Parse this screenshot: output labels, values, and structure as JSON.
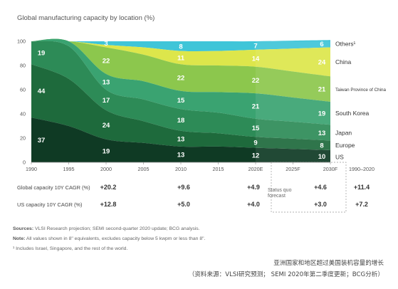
{
  "title": "Global manufacturing capacity by location (%)",
  "chart_data": {
    "type": "area",
    "stacked": true,
    "x": [
      1990,
      1995,
      2000,
      2005,
      2010,
      2015,
      2020,
      2025,
      2030
    ],
    "x_tick_labels": [
      "1990",
      "1995",
      "2000",
      "2005",
      "2010",
      "2015",
      "2020E",
      "2025F",
      "2030F"
    ],
    "ylim": [
      0,
      100
    ],
    "y_ticks": [
      0,
      20,
      40,
      60,
      80,
      100
    ],
    "series": [
      {
        "name": "US",
        "color": "#0f3a24",
        "values": [
          37,
          30,
          19,
          16,
          13,
          13,
          12,
          11,
          10
        ]
      },
      {
        "name": "Europe",
        "color": "#1e6a3c",
        "values": [
          44,
          39,
          24,
          18,
          13,
          11,
          9,
          8.5,
          8
        ]
      },
      {
        "name": "Japan",
        "color": "#2d8b57",
        "values": [
          19,
          27,
          17,
          18,
          18,
          17,
          15,
          14,
          13
        ]
      },
      {
        "name": "South Korea",
        "color": "#3aa371",
        "values": [
          0,
          4,
          13,
          15,
          15,
          17,
          21,
          20,
          19
        ]
      },
      {
        "name": "Taiwan Province of China",
        "color": "#8cc74d",
        "values": [
          0,
          0,
          22,
          22,
          22,
          22,
          22,
          21.5,
          21
        ]
      },
      {
        "name": "China",
        "color": "#dde64b",
        "values": [
          0,
          0,
          2,
          6,
          11,
          12,
          14,
          19,
          24
        ]
      },
      {
        "name": "Others¹",
        "color": "#3fc5d8",
        "values": [
          0,
          0,
          3,
          5,
          8,
          8,
          7,
          6.5,
          6
        ]
      }
    ],
    "data_labels": [
      {
        "series": "US",
        "x": 1990,
        "text": "37"
      },
      {
        "series": "US",
        "x": 2000,
        "text": "19"
      },
      {
        "series": "US",
        "x": 2010,
        "text": "13"
      },
      {
        "series": "US",
        "x": 2020,
        "text": "12"
      },
      {
        "series": "US",
        "x": 2030,
        "text": "10"
      },
      {
        "series": "Europe",
        "x": 1990,
        "text": "44"
      },
      {
        "series": "Europe",
        "x": 2000,
        "text": "24"
      },
      {
        "series": "Europe",
        "x": 2010,
        "text": "13"
      },
      {
        "series": "Europe",
        "x": 2020,
        "text": "9"
      },
      {
        "series": "Europe",
        "x": 2030,
        "text": "8"
      },
      {
        "series": "Japan",
        "x": 1990,
        "text": "19"
      },
      {
        "series": "Japan",
        "x": 2000,
        "text": "17"
      },
      {
        "series": "Japan",
        "x": 2010,
        "text": "18"
      },
      {
        "series": "Japan",
        "x": 2020,
        "text": "15"
      },
      {
        "series": "Japan",
        "x": 2030,
        "text": "13"
      },
      {
        "series": "South Korea",
        "x": 2000,
        "text": "13"
      },
      {
        "series": "South Korea",
        "x": 2010,
        "text": "15"
      },
      {
        "series": "South Korea",
        "x": 2020,
        "text": "21"
      },
      {
        "series": "South Korea",
        "x": 2030,
        "text": "19"
      },
      {
        "series": "Taiwan Province of China",
        "x": 2000,
        "text": "22"
      },
      {
        "series": "Taiwan Province of China",
        "x": 2010,
        "text": "22"
      },
      {
        "series": "Taiwan Province of China",
        "x": 2020,
        "text": "22"
      },
      {
        "series": "Taiwan Province of China",
        "x": 2030,
        "text": "21"
      },
      {
        "series": "China",
        "x": 2010,
        "text": "11"
      },
      {
        "series": "China",
        "x": 2020,
        "text": "14"
      },
      {
        "series": "China",
        "x": 2030,
        "text": "24"
      },
      {
        "series": "Others¹",
        "x": 2000,
        "text": "3"
      },
      {
        "series": "Others¹",
        "x": 2010,
        "text": "8"
      },
      {
        "series": "Others¹",
        "x": 2020,
        "text": "7"
      },
      {
        "series": "Others¹",
        "x": 2030,
        "text": "6"
      }
    ],
    "right_labels": [
      "Others¹",
      "China",
      "Taiwan Province of China",
      "South Korea",
      "Japan",
      "Europe",
      "US"
    ],
    "forecast_label_range": "1990–2020"
  },
  "table": {
    "rows": [
      {
        "label": "Global capacity 10Y CAGR (%)",
        "values": [
          "+20.2",
          "+9.6",
          "+4.9",
          "+4.6",
          "+11.4"
        ]
      },
      {
        "label": "US capacity 10Y CAGR (%)",
        "values": [
          "+12.8",
          "+5.0",
          "+4.0",
          "+3.0",
          "+7.2"
        ]
      }
    ],
    "forecast_note": "Status quo forecast"
  },
  "footnotes": {
    "sources_label": "Sources:",
    "sources_text": " VLSI Research projection; SEMI second-quarter 2020 update; BCG analysis.",
    "note_label": "Note:",
    "note_text": " All values shown in 8\" equivalents, excludes capacity below 5 kwpm or less than 8\".",
    "footnote1": "¹ Includes Israel, Singapore, and the rest of the world."
  },
  "caption": {
    "line1": "亚洲国家和地区超过美国装机容量的增长",
    "line2": "（资料来源：VLSI研究预测； SEMI 2020年第二季度更新；BCG分析）"
  }
}
